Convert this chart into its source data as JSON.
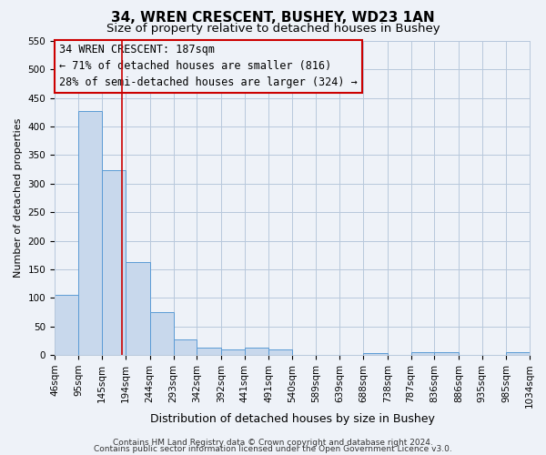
{
  "title": "34, WREN CRESCENT, BUSHEY, WD23 1AN",
  "subtitle": "Size of property relative to detached houses in Bushey",
  "xlabel": "Distribution of detached houses by size in Bushey",
  "ylabel": "Number of detached properties",
  "bin_labels": [
    "46sqm",
    "95sqm",
    "145sqm",
    "194sqm",
    "244sqm",
    "293sqm",
    "342sqm",
    "392sqm",
    "441sqm",
    "491sqm",
    "540sqm",
    "589sqm",
    "639sqm",
    "688sqm",
    "738sqm",
    "787sqm",
    "836sqm",
    "886sqm",
    "935sqm",
    "985sqm",
    "1034sqm"
  ],
  "bar_values": [
    105,
    428,
    323,
    163,
    75,
    27,
    13,
    9,
    13,
    9,
    0,
    0,
    0,
    3,
    0,
    5,
    5,
    0,
    0,
    5
  ],
  "bin_edges": [
    46,
    95,
    145,
    194,
    244,
    293,
    342,
    392,
    441,
    491,
    540,
    589,
    639,
    688,
    738,
    787,
    836,
    886,
    935,
    985,
    1034
  ],
  "bar_color": "#c8d8ec",
  "bar_edge_color": "#5b9bd5",
  "property_size": 187,
  "red_line_color": "#cc0000",
  "annotation_line1": "34 WREN CRESCENT: 187sqm",
  "annotation_line2": "← 71% of detached houses are smaller (816)",
  "annotation_line3": "28% of semi-detached houses are larger (324) →",
  "annotation_box_edge": "#cc0000",
  "ylim": [
    0,
    550
  ],
  "yticks": [
    0,
    50,
    100,
    150,
    200,
    250,
    300,
    350,
    400,
    450,
    500,
    550
  ],
  "grid_color": "#b8c8dc",
  "background_color": "#eef2f8",
  "footer_line1": "Contains HM Land Registry data © Crown copyright and database right 2024.",
  "footer_line2": "Contains public sector information licensed under the Open Government Licence v3.0.",
  "title_fontsize": 11,
  "subtitle_fontsize": 9.5,
  "xlabel_fontsize": 9,
  "ylabel_fontsize": 8,
  "tick_fontsize": 7.5,
  "annotation_fontsize": 8.5,
  "footer_fontsize": 6.5
}
